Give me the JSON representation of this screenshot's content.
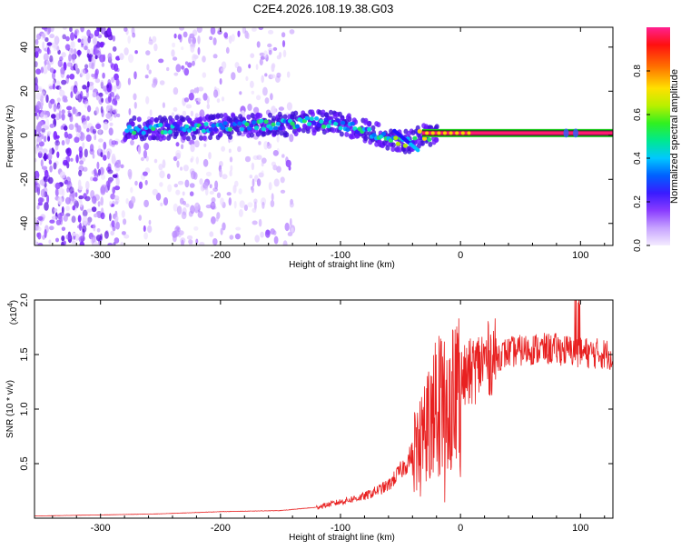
{
  "title": "C2E4.2026.108.19.38.G03",
  "chart_data": [
    {
      "type": "heatmap",
      "name": "spectrogram",
      "xlabel": "Height of straight line (km)",
      "ylabel": "Frequency (Hz)",
      "xlim": [
        -355,
        127
      ],
      "ylim": [
        -50,
        49
      ],
      "xticks": [
        -300,
        -200,
        -100,
        0,
        100
      ],
      "xtick_labels": [
        "-300",
        "-200",
        "-100",
        "0",
        "100"
      ],
      "yticks": [
        -40,
        -20,
        0,
        20,
        40
      ],
      "ytick_labels": [
        "-40",
        "-20",
        "0",
        "20",
        "40"
      ],
      "colorbar": {
        "label": "Normalized spectral amplitude",
        "range": [
          0,
          1
        ],
        "ticks": [
          0.0,
          0.2,
          0.4,
          0.6,
          0.8
        ],
        "tick_labels": [
          "0.0",
          "0.2",
          "0.4",
          "0.6",
          "0.8"
        ],
        "colors": [
          "#f2e6ff",
          "#c9a0ff",
          "#7d2bff",
          "#2b1bff",
          "#00a0ff",
          "#00e5e5",
          "#1ee61e",
          "#b4f000",
          "#ffd000",
          "#ff6000",
          "#ff0000",
          "#ff1a8c"
        ]
      },
      "noise_region_km": [
        -355,
        -140
      ],
      "signal_track": {
        "x": [
          -280,
          -250,
          -200,
          -150,
          -120,
          -100,
          -80,
          -60,
          -45,
          -35,
          -25,
          0,
          50,
          127
        ],
        "y": [
          3,
          3,
          4,
          5,
          6,
          5,
          2,
          -1,
          -3,
          0,
          0,
          1,
          1,
          1
        ]
      }
    },
    {
      "type": "line",
      "name": "snr",
      "xlabel": "Height of straight line (km)",
      "ylabel": "SNR (10 * v/v)",
      "exponent_label": "(x10",
      "exponent_power": "4",
      "exponent_close": ")",
      "xlim": [
        -355,
        127
      ],
      "ylim": [
        0,
        2.0
      ],
      "xticks": [
        -300,
        -200,
        -100,
        0,
        100
      ],
      "xtick_labels": [
        "-300",
        "-200",
        "-100",
        "0",
        "100"
      ],
      "yticks": [
        0.5,
        1.0,
        1.5,
        2.0
      ],
      "ytick_labels": [
        "0.5",
        "1.0",
        "1.5",
        "2.0"
      ],
      "color": "#e82020",
      "envelope": {
        "x": [
          -355,
          -300,
          -250,
          -200,
          -150,
          -120,
          -100,
          -80,
          -60,
          -45,
          -35,
          -25,
          -15,
          0,
          20,
          40,
          60,
          80,
          100,
          127
        ],
        "y": [
          0.02,
          0.03,
          0.04,
          0.06,
          0.07,
          0.1,
          0.15,
          0.2,
          0.3,
          0.5,
          0.7,
          0.95,
          1.1,
          1.25,
          1.45,
          1.52,
          1.55,
          1.55,
          1.52,
          1.5
        ]
      }
    }
  ]
}
